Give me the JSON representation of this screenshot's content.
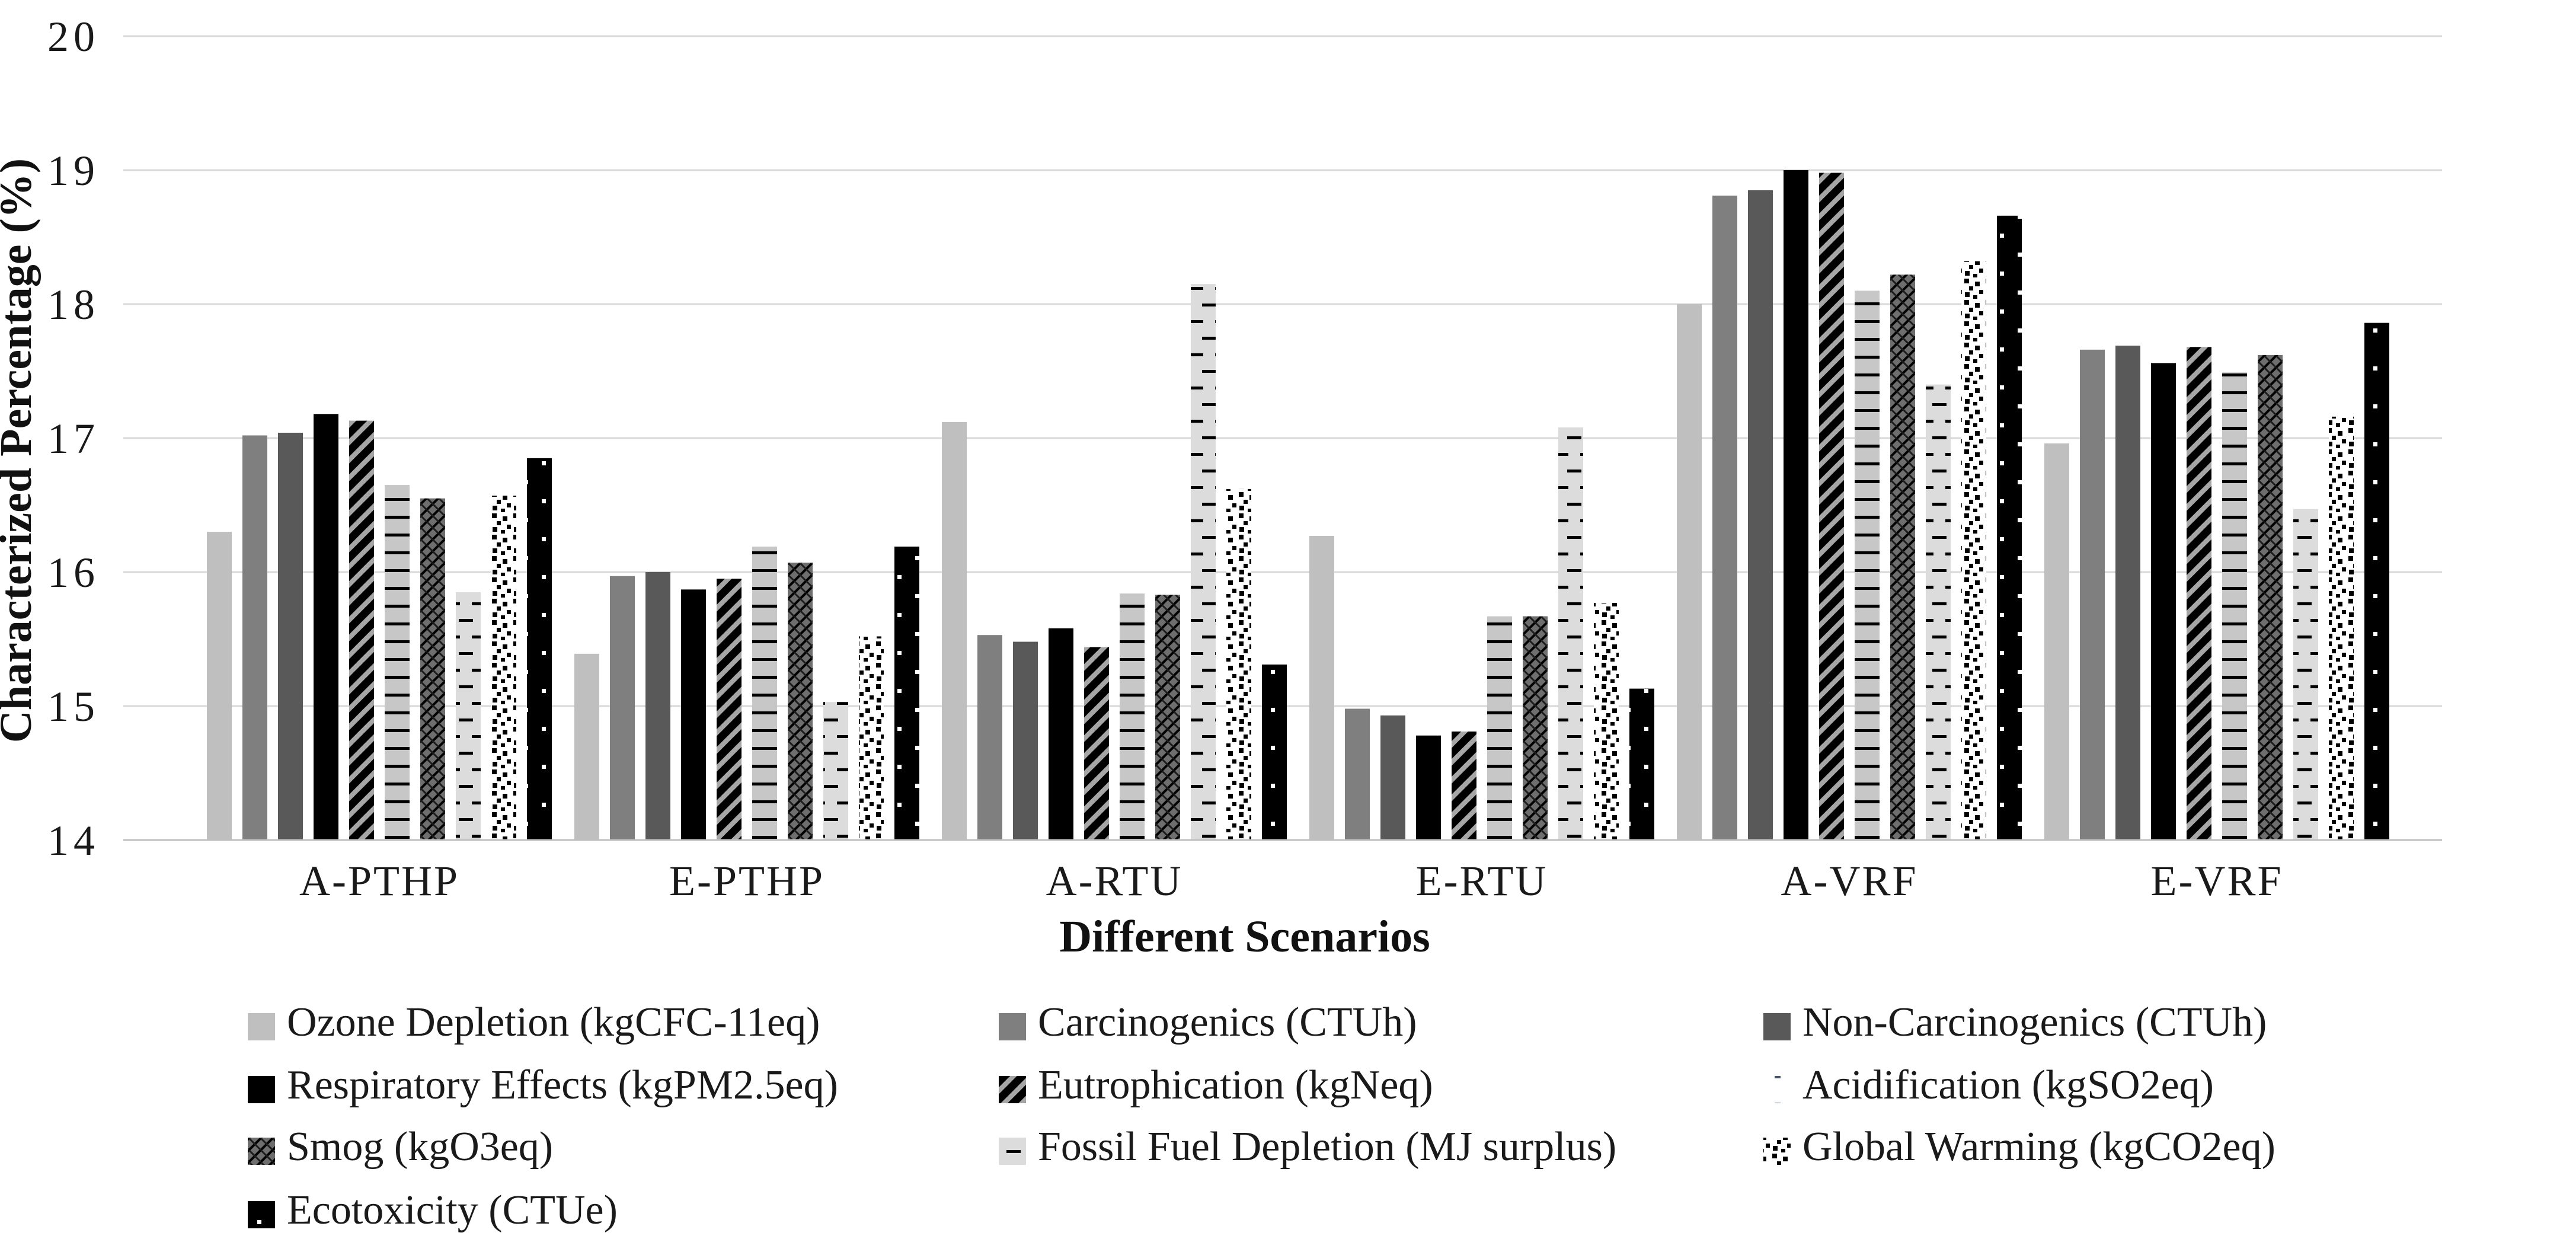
{
  "chart_data": {
    "type": "bar",
    "title": "",
    "xlabel": "Different Scenarios",
    "ylabel": "Characterized Percentage (%)",
    "ylim": [
      14,
      20
    ],
    "yticks": [
      20,
      19,
      18,
      17,
      16,
      15,
      14
    ],
    "grid": true,
    "legend_position": "bottom",
    "categories": [
      "A-PTHP",
      "E-PTHP",
      "A-RTU",
      "E-RTU",
      "A-VRF",
      "E-VRF"
    ],
    "series": [
      {
        "name": "Ozone Depletion (kgCFC-11eq)",
        "pattern": "solid",
        "color": "#bfbfbf",
        "values": [
          16.3,
          15.39,
          17.12,
          16.27,
          18.0,
          16.96
        ]
      },
      {
        "name": "Carcinogenics (CTUh)",
        "pattern": "solid",
        "color": "#7f7f7f",
        "values": [
          17.02,
          15.97,
          15.53,
          14.98,
          18.81,
          17.66
        ]
      },
      {
        "name": "Non-Carcinogenics (CTUh)",
        "pattern": "solid",
        "color": "#595959",
        "values": [
          17.04,
          16.0,
          15.48,
          14.93,
          18.85,
          17.69
        ]
      },
      {
        "name": "Respiratory Effects (kgPM2.5eq)",
        "pattern": "solid",
        "color": "#000000",
        "values": [
          17.18,
          15.87,
          15.58,
          14.78,
          19.0,
          17.56
        ]
      },
      {
        "name": "Eutrophication (kgNeq)",
        "pattern": "diagonal-stripes",
        "color": "#a6a6a6",
        "values": [
          17.13,
          15.95,
          15.44,
          14.81,
          18.98,
          17.68
        ]
      },
      {
        "name": "Acidification (kgSO2eq)",
        "pattern": "horizontal-lines",
        "color": "#c7c7c7",
        "legend_swatch": "faint",
        "values": [
          16.65,
          16.19,
          15.84,
          15.67,
          18.1,
          17.49
        ]
      },
      {
        "name": "Smog (kgO3eq)",
        "pattern": "dark-weave",
        "color": "#6e6e6e",
        "values": [
          16.55,
          16.07,
          15.83,
          15.67,
          18.22,
          17.62
        ]
      },
      {
        "name": "Fossil Fuel Depletion (MJ surplus)",
        "pattern": "dashes",
        "color": "#dcdcdc",
        "values": [
          15.85,
          15.03,
          18.15,
          17.08,
          17.4,
          16.47
        ]
      },
      {
        "name": "Global Warming (kgCO2eq)",
        "pattern": "speckle",
        "color": "#ffffff",
        "values": [
          16.57,
          15.52,
          16.62,
          15.77,
          18.32,
          17.16
        ]
      },
      {
        "name": "Ecotoxicity (CTUe)",
        "pattern": "black-dots",
        "color": "#000000",
        "values": [
          16.85,
          16.19,
          15.31,
          15.13,
          18.66,
          17.86
        ]
      }
    ]
  }
}
